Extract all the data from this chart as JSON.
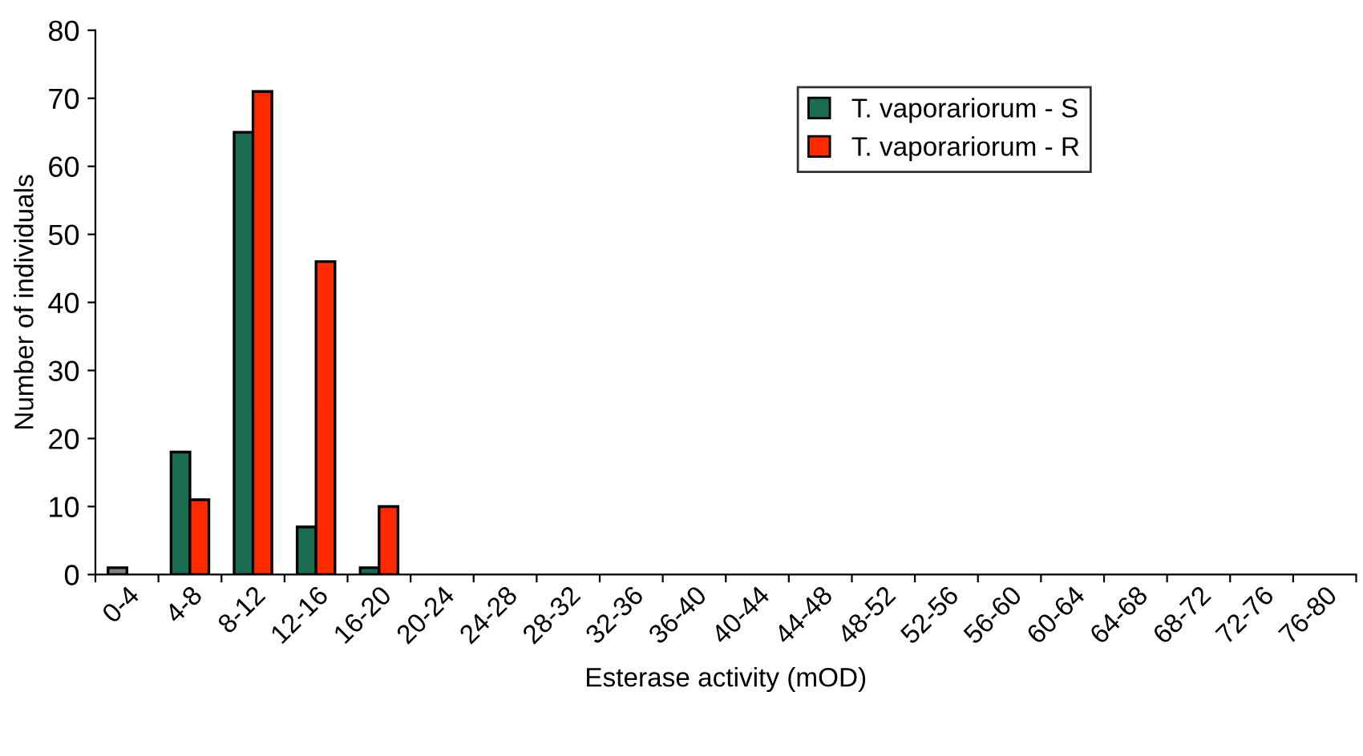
{
  "chart_data": {
    "type": "bar",
    "xlabel": "Esterase activity (mOD)",
    "ylabel": "Number of individuals",
    "categories": [
      "0-4",
      "4-8",
      "8-12",
      "12-16",
      "16-20",
      "20-24",
      "24-28",
      "28-32",
      "32-36",
      "36-40",
      "40-44",
      "44-48",
      "48-52",
      "52-56",
      "56-60",
      "60-64",
      "64-68",
      "68-72",
      "72-76",
      "76-80"
    ],
    "series": [
      {
        "name": "T. vaporariorum - S",
        "color": "#1a6b4f",
        "colors": [
          "#808080",
          "#1a6b4f",
          "#1a6b4f",
          "#1a6b4f",
          "#1a6b4f",
          "#1a6b4f",
          "#1a6b4f",
          "#1a6b4f",
          "#1a6b4f",
          "#1a6b4f",
          "#1a6b4f",
          "#1a6b4f",
          "#1a6b4f",
          "#1a6b4f",
          "#1a6b4f",
          "#1a6b4f",
          "#1a6b4f",
          "#1a6b4f",
          "#1a6b4f",
          "#1a6b4f"
        ],
        "values": [
          1,
          18,
          65,
          7,
          1,
          0,
          0,
          0,
          0,
          0,
          0,
          0,
          0,
          0,
          0,
          0,
          0,
          0,
          0,
          0
        ]
      },
      {
        "name": "T. vaporariorum - R",
        "color": "#ff2a00",
        "values": [
          0,
          11,
          71,
          46,
          10,
          0,
          0,
          0,
          0,
          0,
          0,
          0,
          0,
          0,
          0,
          0,
          0,
          0,
          0,
          0
        ]
      }
    ],
    "ylim": [
      0,
      80
    ],
    "yticks": [
      0,
      10,
      20,
      30,
      40,
      50,
      60,
      70,
      80
    ],
    "grid": false,
    "legend": "top right"
  }
}
